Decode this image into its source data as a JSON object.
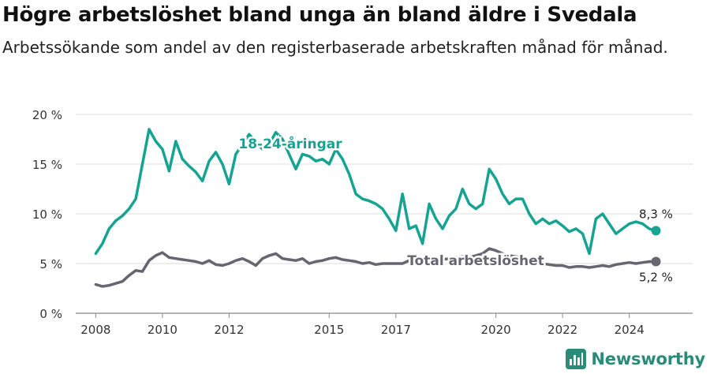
{
  "title": "Högre arbetslöshet bland unga än bland äldre i Svedala",
  "subtitle": "Arbetssökande som andel av den registerbaserade arbetskraften månad för månad.",
  "brand": "Newsworthy",
  "chart_data": {
    "type": "line",
    "ylim": [
      0,
      20
    ],
    "yticks": [
      0,
      5,
      10,
      15,
      20
    ],
    "ytick_labels": [
      "0 %",
      "5 %",
      "10 %",
      "15 %",
      "20 %"
    ],
    "xlim": [
      2007.4,
      2025.9
    ],
    "xticks": [
      2008,
      2010,
      2012,
      2015,
      2017,
      2020,
      2022,
      2024
    ],
    "xtick_labels": [
      "2008",
      "2010",
      "2012",
      "2015",
      "2017",
      "2020",
      "2022",
      "2024"
    ],
    "grid": true,
    "series": [
      {
        "name": "18-24-åringar",
        "color": "#17a392",
        "end_label": "8,3 %",
        "x": [
          2008.0,
          2008.2,
          2008.4,
          2008.6,
          2008.8,
          2009.0,
          2009.2,
          2009.4,
          2009.6,
          2009.8,
          2010.0,
          2010.2,
          2010.4,
          2010.6,
          2010.8,
          2011.0,
          2011.2,
          2011.4,
          2011.6,
          2011.8,
          2012.0,
          2012.2,
          2012.4,
          2012.6,
          2012.8,
          2013.0,
          2013.2,
          2013.4,
          2013.6,
          2013.8,
          2014.0,
          2014.2,
          2014.4,
          2014.6,
          2014.8,
          2015.0,
          2015.2,
          2015.4,
          2015.6,
          2015.8,
          2016.0,
          2016.2,
          2016.4,
          2016.6,
          2016.8,
          2017.0,
          2017.2,
          2017.4,
          2017.6,
          2017.8,
          2018.0,
          2018.2,
          2018.4,
          2018.6,
          2018.8,
          2019.0,
          2019.2,
          2019.4,
          2019.6,
          2019.8,
          2020.0,
          2020.2,
          2020.4,
          2020.6,
          2020.8,
          2021.0,
          2021.2,
          2021.4,
          2021.6,
          2021.8,
          2022.0,
          2022.2,
          2022.4,
          2022.6,
          2022.8,
          2023.0,
          2023.2,
          2023.4,
          2023.6,
          2023.8,
          2024.0,
          2024.2,
          2024.4,
          2024.6,
          2024.8
        ],
        "values": [
          6.0,
          7.0,
          8.5,
          9.3,
          9.8,
          10.5,
          11.5,
          15.0,
          18.5,
          17.3,
          16.5,
          14.3,
          17.3,
          15.5,
          14.8,
          14.2,
          13.3,
          15.3,
          16.2,
          15.0,
          13.0,
          16.0,
          17.0,
          18.0,
          17.2,
          16.5,
          17.0,
          18.2,
          17.5,
          16.0,
          14.5,
          16.0,
          15.8,
          15.3,
          15.5,
          15.0,
          16.5,
          15.5,
          14.0,
          12.0,
          11.5,
          11.3,
          11.0,
          10.5,
          9.5,
          8.3,
          12.0,
          8.5,
          8.8,
          7.0,
          11.0,
          9.5,
          8.5,
          9.8,
          10.5,
          12.5,
          11.0,
          10.5,
          11.0,
          14.5,
          13.5,
          12.0,
          11.0,
          11.5,
          11.5,
          10.0,
          9.0,
          9.5,
          9.0,
          9.3,
          8.8,
          8.2,
          8.5,
          8.0,
          6.0,
          9.5,
          10.0,
          9.0,
          8.0,
          8.5,
          9.0,
          9.2,
          9.0,
          8.5,
          8.3
        ]
      },
      {
        "name": "Total arbetslöshet",
        "color": "#666570",
        "end_label": "5,2 %",
        "x": [
          2008.0,
          2008.2,
          2008.4,
          2008.6,
          2008.8,
          2009.0,
          2009.2,
          2009.4,
          2009.6,
          2009.8,
          2010.0,
          2010.2,
          2010.4,
          2010.6,
          2010.8,
          2011.0,
          2011.2,
          2011.4,
          2011.6,
          2011.8,
          2012.0,
          2012.2,
          2012.4,
          2012.6,
          2012.8,
          2013.0,
          2013.2,
          2013.4,
          2013.6,
          2013.8,
          2014.0,
          2014.2,
          2014.4,
          2014.6,
          2014.8,
          2015.0,
          2015.2,
          2015.4,
          2015.6,
          2015.8,
          2016.0,
          2016.2,
          2016.4,
          2016.6,
          2016.8,
          2017.0,
          2017.2,
          2017.4,
          2017.6,
          2017.8,
          2018.0,
          2018.2,
          2018.4,
          2018.6,
          2018.8,
          2019.0,
          2019.2,
          2019.4,
          2019.6,
          2019.8,
          2020.0,
          2020.2,
          2020.4,
          2020.6,
          2020.8,
          2021.0,
          2021.2,
          2021.4,
          2021.6,
          2021.8,
          2022.0,
          2022.2,
          2022.4,
          2022.6,
          2022.8,
          2023.0,
          2023.2,
          2023.4,
          2023.6,
          2023.8,
          2024.0,
          2024.2,
          2024.4,
          2024.6,
          2024.8
        ],
        "values": [
          2.9,
          2.7,
          2.8,
          3.0,
          3.2,
          3.8,
          4.3,
          4.2,
          5.3,
          5.8,
          6.1,
          5.6,
          5.5,
          5.4,
          5.3,
          5.2,
          5.0,
          5.3,
          4.9,
          4.8,
          5.0,
          5.3,
          5.5,
          5.2,
          4.8,
          5.5,
          5.8,
          6.0,
          5.5,
          5.4,
          5.3,
          5.5,
          5.0,
          5.2,
          5.3,
          5.5,
          5.6,
          5.4,
          5.3,
          5.2,
          5.0,
          5.1,
          4.9,
          5.0,
          5.0,
          5.0,
          5.0,
          5.3,
          5.4,
          5.3,
          5.6,
          5.5,
          5.4,
          5.5,
          5.6,
          5.7,
          5.6,
          5.8,
          6.0,
          6.5,
          6.3,
          6.0,
          5.8,
          5.7,
          5.6,
          5.4,
          5.2,
          5.0,
          4.9,
          4.8,
          4.8,
          4.6,
          4.7,
          4.7,
          4.6,
          4.7,
          4.8,
          4.7,
          4.9,
          5.0,
          5.1,
          5.0,
          5.1,
          5.2,
          5.2
        ]
      }
    ]
  }
}
